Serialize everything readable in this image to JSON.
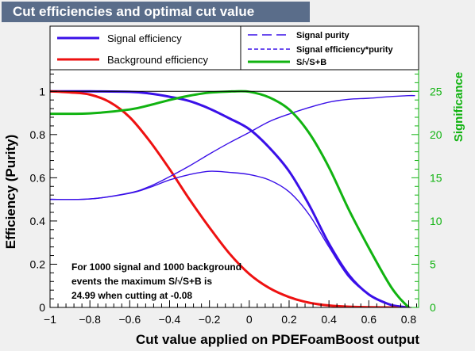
{
  "window": {
    "title": "Cut efficiencies and optimal cut value"
  },
  "colors": {
    "signal_efficiency": "#3a10e8",
    "background_efficiency": "#ee1111",
    "signal_purity": "#3a10e8",
    "signal_eff_purity": "#3a10e8",
    "significance": "#11b311",
    "title_bar": "#5a6d8a",
    "frame_bg": "#f0f0f0",
    "plot_bg": "#ffffff"
  },
  "legend": {
    "left": [
      {
        "label": "Signal efficiency",
        "series": "signal_efficiency",
        "style": "solid"
      },
      {
        "label": "Background efficiency",
        "series": "background_efficiency",
        "style": "solid"
      }
    ],
    "right": [
      {
        "label": "Signal purity",
        "series": "signal_purity",
        "style": "longdash"
      },
      {
        "label": "Signal efficiency*purity",
        "series": "signal_eff_purity",
        "style": "dash"
      },
      {
        "label": "S/√S+B",
        "series": "significance",
        "style": "solid"
      }
    ]
  },
  "annotation": {
    "lines": [
      "For 1000 signal and 1000 background",
      "events the maximum S/√S+B is",
      "24.99 when cutting at -0.08"
    ]
  },
  "chart_data": {
    "type": "line",
    "xlabel": "Cut value applied on PDEFoamBoost output",
    "ylabel": "Efficiency (Purity)",
    "y2label": "Significance",
    "xlim": [
      -1.0,
      0.85
    ],
    "ylim": [
      0.0,
      1.1
    ],
    "y2lim": [
      0.0,
      27.5
    ],
    "xticks": [
      "−1",
      "−0.8",
      "−0.6",
      "−0.4",
      "−0.2",
      "0",
      "0.2",
      "0.4",
      "0.6",
      "0.8"
    ],
    "xtick_values": [
      -1.0,
      -0.8,
      -0.6,
      -0.4,
      -0.2,
      0.0,
      0.2,
      0.4,
      0.6,
      0.8
    ],
    "yticks": [
      "0",
      "0.2",
      "0.4",
      "0.6",
      "0.8",
      "1"
    ],
    "ytick_values": [
      0.0,
      0.2,
      0.4,
      0.6,
      0.8,
      1.0
    ],
    "y2ticks": [
      "0",
      "5",
      "10",
      "15",
      "20",
      "25"
    ],
    "y2tick_values": [
      0,
      5,
      10,
      15,
      20,
      25
    ],
    "reference_line": {
      "y": 1.0
    },
    "series": [
      {
        "key": "signal_efficiency",
        "name": "Signal efficiency",
        "axis": "left",
        "x": [
          -1.0,
          -0.8,
          -0.6,
          -0.5,
          -0.4,
          -0.3,
          -0.2,
          -0.1,
          0.0,
          0.1,
          0.2,
          0.3,
          0.4,
          0.5,
          0.6,
          0.7,
          0.75,
          0.8
        ],
        "y": [
          1.0,
          1.0,
          0.998,
          0.99,
          0.975,
          0.955,
          0.92,
          0.875,
          0.825,
          0.74,
          0.63,
          0.475,
          0.295,
          0.15,
          0.06,
          0.015,
          0.005,
          0.0
        ]
      },
      {
        "key": "background_efficiency",
        "name": "Background efficiency",
        "axis": "left",
        "x": [
          -1.0,
          -0.9,
          -0.8,
          -0.7,
          -0.6,
          -0.5,
          -0.4,
          -0.3,
          -0.2,
          -0.1,
          0.0,
          0.1,
          0.2,
          0.3,
          0.4,
          0.5,
          0.6,
          0.7,
          0.8
        ],
        "y": [
          1.0,
          0.995,
          0.985,
          0.95,
          0.88,
          0.77,
          0.64,
          0.5,
          0.37,
          0.25,
          0.155,
          0.09,
          0.048,
          0.022,
          0.009,
          0.003,
          0.001,
          0.0,
          0.0
        ]
      },
      {
        "key": "signal_purity",
        "name": "Signal purity",
        "axis": "left",
        "x": [
          -1.0,
          -0.8,
          -0.6,
          -0.5,
          -0.4,
          -0.3,
          -0.2,
          -0.1,
          0.0,
          0.1,
          0.2,
          0.3,
          0.4,
          0.5,
          0.6,
          0.7,
          0.8,
          0.83
        ],
        "y": [
          0.5,
          0.502,
          0.53,
          0.56,
          0.605,
          0.655,
          0.71,
          0.762,
          0.81,
          0.86,
          0.895,
          0.925,
          0.95,
          0.963,
          0.968,
          0.975,
          0.98,
          0.98
        ]
      },
      {
        "key": "signal_eff_purity",
        "name": "Signal efficiency*purity",
        "axis": "left",
        "x": [
          -1.0,
          -0.8,
          -0.6,
          -0.5,
          -0.4,
          -0.3,
          -0.2,
          -0.1,
          0.0,
          0.1,
          0.2,
          0.3,
          0.4,
          0.5,
          0.6,
          0.7,
          0.8
        ],
        "y": [
          0.5,
          0.502,
          0.528,
          0.555,
          0.59,
          0.615,
          0.63,
          0.625,
          0.615,
          0.59,
          0.535,
          0.43,
          0.28,
          0.14,
          0.06,
          0.015,
          0.0
        ]
      },
      {
        "key": "significance",
        "name": "S/√S+B",
        "axis": "right",
        "x": [
          -1.0,
          -0.8,
          -0.6,
          -0.5,
          -0.4,
          -0.3,
          -0.2,
          -0.1,
          -0.08,
          0.0,
          0.1,
          0.2,
          0.3,
          0.4,
          0.5,
          0.6,
          0.7,
          0.75,
          0.8
        ],
        "y": [
          22.4,
          22.45,
          22.9,
          23.4,
          24.0,
          24.5,
          24.85,
          24.98,
          24.99,
          24.95,
          24.3,
          22.9,
          20.2,
          16.2,
          11.3,
          6.9,
          2.8,
          1.2,
          0.0
        ]
      }
    ]
  }
}
